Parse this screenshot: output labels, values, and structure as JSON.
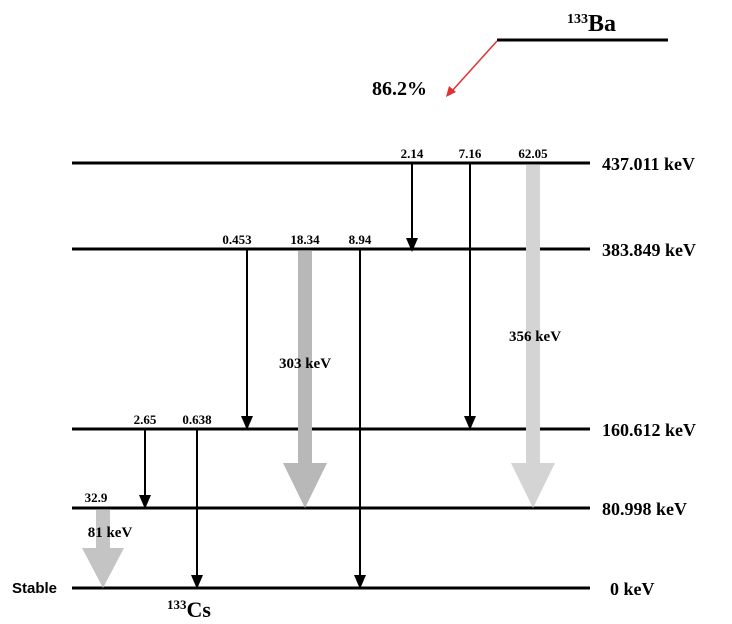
{
  "parent": {
    "mass": "133",
    "symbol": "Ba",
    "branch": "86.2%"
  },
  "daughter": {
    "mass": "133",
    "symbol": "Cs",
    "note": "Stable"
  },
  "levels": [
    "437.011 keV",
    "383.849 keV",
    "160.612 keV",
    "80.998 keV",
    "0 keV"
  ],
  "transitions": [
    {
      "intensity": "2.14"
    },
    {
      "intensity": "7.16"
    },
    {
      "intensity": "62.05",
      "energy": "356 keV"
    },
    {
      "intensity": "0.453"
    },
    {
      "intensity": "18.34",
      "energy": "303 keV"
    },
    {
      "intensity": "8.94"
    },
    {
      "intensity": "2.65"
    },
    {
      "intensity": "0.638"
    },
    {
      "intensity": "32.9",
      "energy": "81 keV"
    }
  ]
}
